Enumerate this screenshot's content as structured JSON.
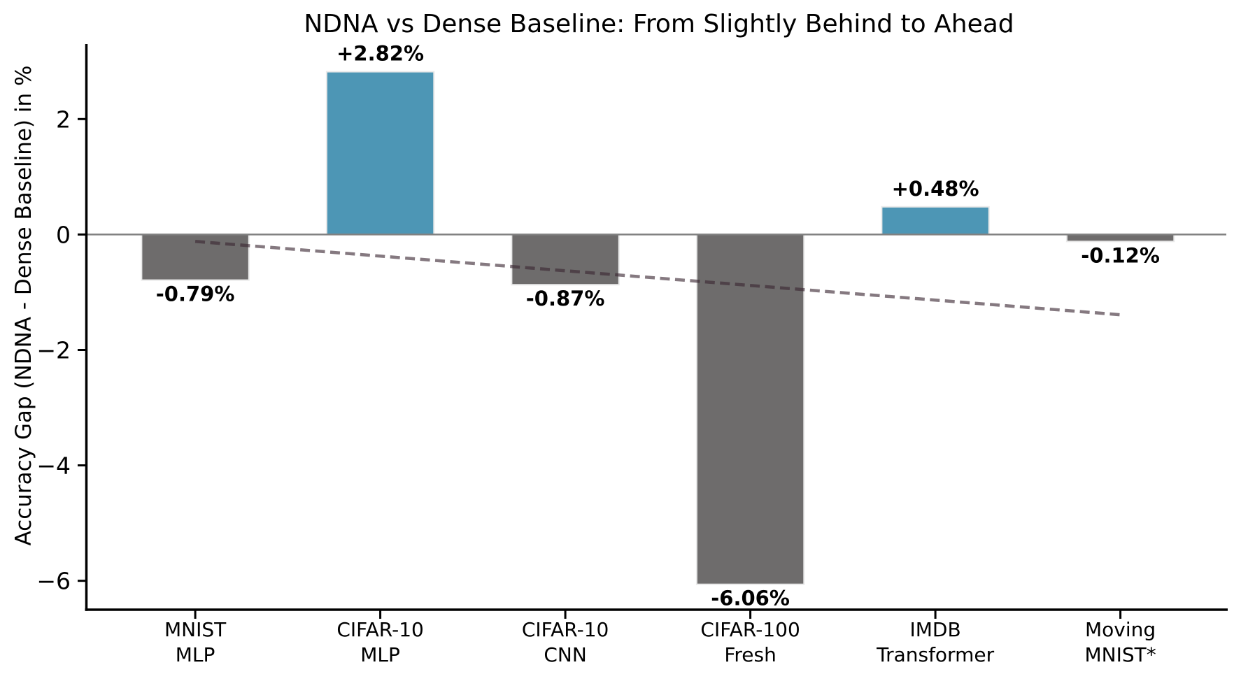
{
  "chart_data": {
    "type": "bar",
    "title": "NDNA vs Dense Baseline: From Slightly Behind to Ahead",
    "xlabel": "",
    "ylabel": "Accuracy Gap (NDNA - Dense Baseline) in %",
    "categories": [
      [
        "MNIST",
        "MLP"
      ],
      [
        "CIFAR-10",
        "MLP"
      ],
      [
        "CIFAR-10",
        "CNN"
      ],
      [
        "CIFAR-100",
        "Fresh"
      ],
      [
        "IMDB",
        "Transformer"
      ],
      [
        "Moving",
        "MNIST*"
      ]
    ],
    "category_slugs": [
      "mnist-mlp",
      "cifar-10-mlp",
      "cifar-10-cnn",
      "cifar-100-fresh",
      "imdb-transformer",
      "moving-mnist"
    ],
    "values": [
      -0.79,
      2.82,
      -0.87,
      -6.06,
      0.48,
      -0.12
    ],
    "bar_labels": [
      "-0.79%",
      "+2.82%",
      "-0.87%",
      "-6.06%",
      "+0.48%",
      "-0.12%"
    ],
    "yticks": [
      2,
      0,
      -2,
      -4,
      -6
    ],
    "ytick_labels": [
      "2",
      "0",
      "−2",
      "−4",
      "−6"
    ],
    "ylim": [
      -6.5,
      3.3
    ],
    "xlim": [
      -0.59,
      5.58
    ],
    "bar_width": 0.58,
    "grid": false,
    "legend": null,
    "zero_line": true,
    "trend_line": {
      "style": "dashed",
      "x": [
        0,
        5
      ],
      "y": [
        -0.12,
        -1.39
      ]
    },
    "colors": {
      "positive_bar": "#4d96b5",
      "negative_bar": "#6e6c6c",
      "bar_edge": "#e9e9e9",
      "zero_line": "#808080",
      "trend_line": "rgba(58,38,50,0.62)",
      "axis": "#000000",
      "text": "#000000",
      "background": "#ffffff"
    }
  }
}
